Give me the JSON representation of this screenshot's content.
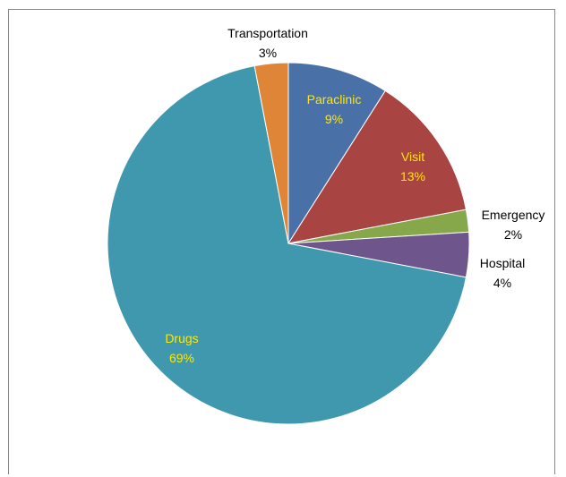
{
  "chart_data": {
    "type": "pie",
    "title": "",
    "start_angle_deg": 0,
    "direction": "clockwise",
    "slices": [
      {
        "label": "Paraclinic",
        "value": 9,
        "value_label": "9%",
        "color": "#4A70A8",
        "label_color": "#FFE800",
        "label_inside": true
      },
      {
        "label": "Visit",
        "value": 13,
        "value_label": "13%",
        "color": "#A84442",
        "label_color": "#FFE800",
        "label_inside": true
      },
      {
        "label": "Emergency",
        "value": 2,
        "value_label": "2%",
        "color": "#86A74A",
        "label_color": "#000000",
        "label_inside": false
      },
      {
        "label": "Hospital",
        "value": 4,
        "value_label": "4%",
        "color": "#6E558C",
        "label_color": "#000000",
        "label_inside": false
      },
      {
        "label": "Drugs",
        "value": 69,
        "value_label": "69%",
        "color": "#3F98AE",
        "label_color": "#FFE800",
        "label_inside": true
      },
      {
        "label": "Transportation",
        "value": 3,
        "value_label": "3%",
        "color": "#DE8538",
        "label_color": "#000000",
        "label_inside": false
      }
    ]
  }
}
